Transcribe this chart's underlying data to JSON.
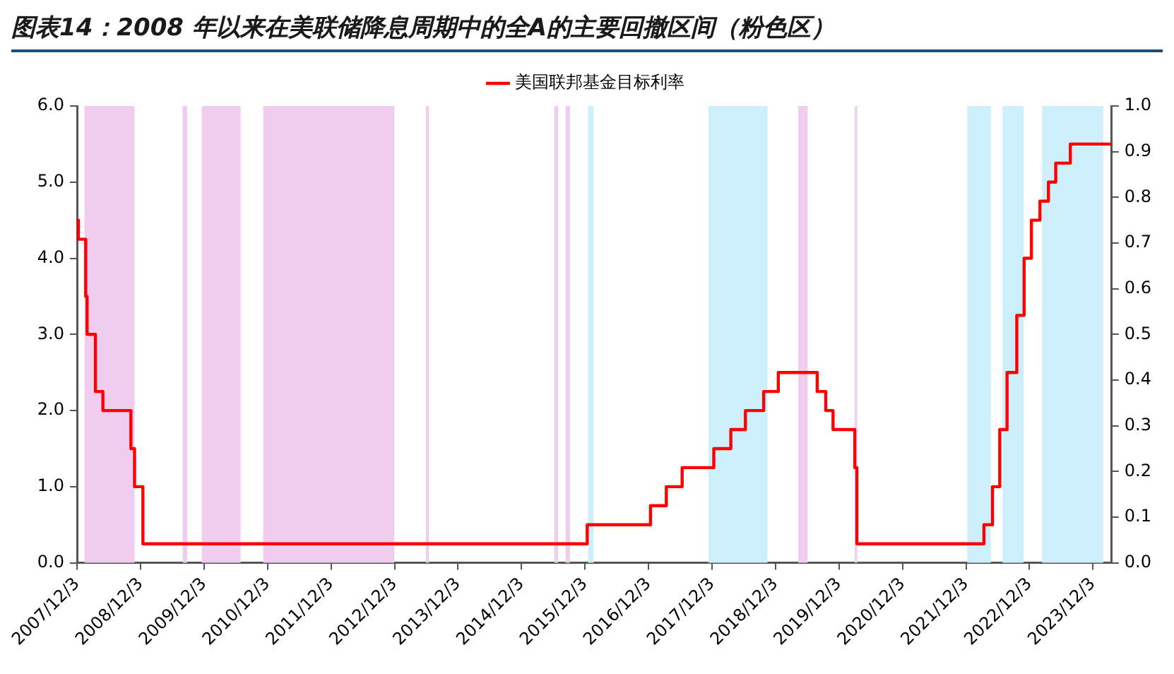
{
  "chart_data": {
    "type": "step",
    "title": "图表14：2008 年以来在美联储降息周期中的全A的主要回撤区间（粉色区）",
    "x": [
      "2007-12-03",
      "2007-12-11",
      "2008-01-22",
      "2008-01-30",
      "2008-03-18",
      "2008-04-30",
      "2008-10-08",
      "2008-10-29",
      "2008-12-16",
      "2015-12-16",
      "2016-12-14",
      "2017-03-15",
      "2017-06-14",
      "2017-12-13",
      "2018-03-21",
      "2018-06-13",
      "2018-09-26",
      "2018-12-19",
      "2019-07-31",
      "2019-09-18",
      "2019-10-30",
      "2020-03-03",
      "2020-03-15",
      "2022-03-16",
      "2022-05-04",
      "2022-06-15",
      "2022-07-27",
      "2022-09-21",
      "2022-11-02",
      "2022-12-14",
      "2023-02-01",
      "2023-03-22",
      "2023-05-03",
      "2023-07-26",
      "2024-03-20"
    ],
    "series": [
      {
        "name": "美国联邦基金目标利率",
        "color": "#ff0000",
        "values": [
          4.5,
          4.25,
          3.5,
          3.0,
          2.25,
          2.0,
          1.5,
          1.0,
          0.25,
          0.5,
          0.75,
          1.0,
          1.25,
          1.5,
          1.75,
          2.0,
          2.25,
          2.5,
          2.25,
          2.0,
          1.75,
          1.25,
          0.25,
          0.5,
          1.0,
          1.75,
          2.5,
          3.25,
          4.0,
          4.5,
          4.75,
          5.0,
          5.25,
          5.5,
          5.5
        ]
      }
    ],
    "xlim": [
      "2007-12-03",
      "2024-03-20"
    ],
    "xticks": [
      {
        "value": "2007-12-03",
        "label": "2007/12/3"
      },
      {
        "value": "2008-12-03",
        "label": "2008/12/3"
      },
      {
        "value": "2009-12-03",
        "label": "2009/12/3"
      },
      {
        "value": "2010-12-03",
        "label": "2010/12/3"
      },
      {
        "value": "2011-12-03",
        "label": "2011/12/3"
      },
      {
        "value": "2012-12-03",
        "label": "2012/12/3"
      },
      {
        "value": "2013-12-03",
        "label": "2013/12/3"
      },
      {
        "value": "2014-12-03",
        "label": "2014/12/3"
      },
      {
        "value": "2015-12-03",
        "label": "2015/12/3"
      },
      {
        "value": "2016-12-03",
        "label": "2016/12/3"
      },
      {
        "value": "2017-12-03",
        "label": "2017/12/3"
      },
      {
        "value": "2018-12-03",
        "label": "2018/12/3"
      },
      {
        "value": "2019-12-03",
        "label": "2019/12/3"
      },
      {
        "value": "2020-12-03",
        "label": "2020/12/3"
      },
      {
        "value": "2021-12-03",
        "label": "2021/12/3"
      },
      {
        "value": "2022-12-03",
        "label": "2022/12/3"
      },
      {
        "value": "2023-12-03",
        "label": "2023/12/3"
      }
    ],
    "ylim": [
      0,
      6
    ],
    "yticks": [
      {
        "value": 0,
        "label": "0.0"
      },
      {
        "value": 1,
        "label": "1.0"
      },
      {
        "value": 2,
        "label": "2.0"
      },
      {
        "value": 3,
        "label": "3.0"
      },
      {
        "value": 4,
        "label": "4.0"
      },
      {
        "value": 5,
        "label": "5.0"
      },
      {
        "value": 6,
        "label": "6.0"
      }
    ],
    "y2lim": [
      0,
      1
    ],
    "y2ticks": [
      {
        "value": 0,
        "label": "0.0"
      },
      {
        "value": 0.1,
        "label": "0.1"
      },
      {
        "value": 0.2,
        "label": "0.2"
      },
      {
        "value": 0.3,
        "label": "0.3"
      },
      {
        "value": 0.4,
        "label": "0.4"
      },
      {
        "value": 0.5,
        "label": "0.5"
      },
      {
        "value": 0.6,
        "label": "0.6"
      },
      {
        "value": 0.7,
        "label": "0.7"
      },
      {
        "value": 0.8,
        "label": "0.8"
      },
      {
        "value": 0.9,
        "label": "0.9"
      },
      {
        "value": 1,
        "label": "1.0"
      }
    ],
    "bands": [
      {
        "axis": "x",
        "from": "2008-01-15",
        "to": "2008-10-29",
        "color": "#f0cdee"
      },
      {
        "axis": "x",
        "from": "2009-08-02",
        "to": "2009-08-28",
        "color": "#f0cdee"
      },
      {
        "axis": "x",
        "from": "2009-11-20",
        "to": "2010-07-01",
        "color": "#f0cdee"
      },
      {
        "axis": "x",
        "from": "2010-11-08",
        "to": "2012-12-01",
        "color": "#f0cdee"
      },
      {
        "axis": "x",
        "from": "2013-06-01",
        "to": "2013-06-19",
        "color": "#f0cdee"
      },
      {
        "axis": "x",
        "from": "2015-06-10",
        "to": "2015-07-01",
        "color": "#f0cdee"
      },
      {
        "axis": "x",
        "from": "2015-08-14",
        "to": "2015-09-08",
        "color": "#f0cdee"
      },
      {
        "axis": "x",
        "from": "2015-12-21",
        "to": "2016-01-22",
        "color": "#cdeefb"
      },
      {
        "axis": "x",
        "from": "2017-11-12",
        "to": "2018-10-18",
        "color": "#cdeefb"
      },
      {
        "axis": "x",
        "from": "2019-04-13",
        "to": "2019-06-06",
        "color": "#f0cdee"
      },
      {
        "axis": "x",
        "from": "2020-03-03",
        "to": "2020-03-17",
        "color": "#f0cdee"
      },
      {
        "axis": "x",
        "from": "2021-12-10",
        "to": "2022-04-24",
        "color": "#cdeefb"
      },
      {
        "axis": "x",
        "from": "2022-07-01",
        "to": "2022-10-30",
        "color": "#cdeefb"
      },
      {
        "axis": "x",
        "from": "2023-02-14",
        "to": "2024-01-31",
        "color": "#cdeefb"
      }
    ],
    "legend": "top"
  }
}
